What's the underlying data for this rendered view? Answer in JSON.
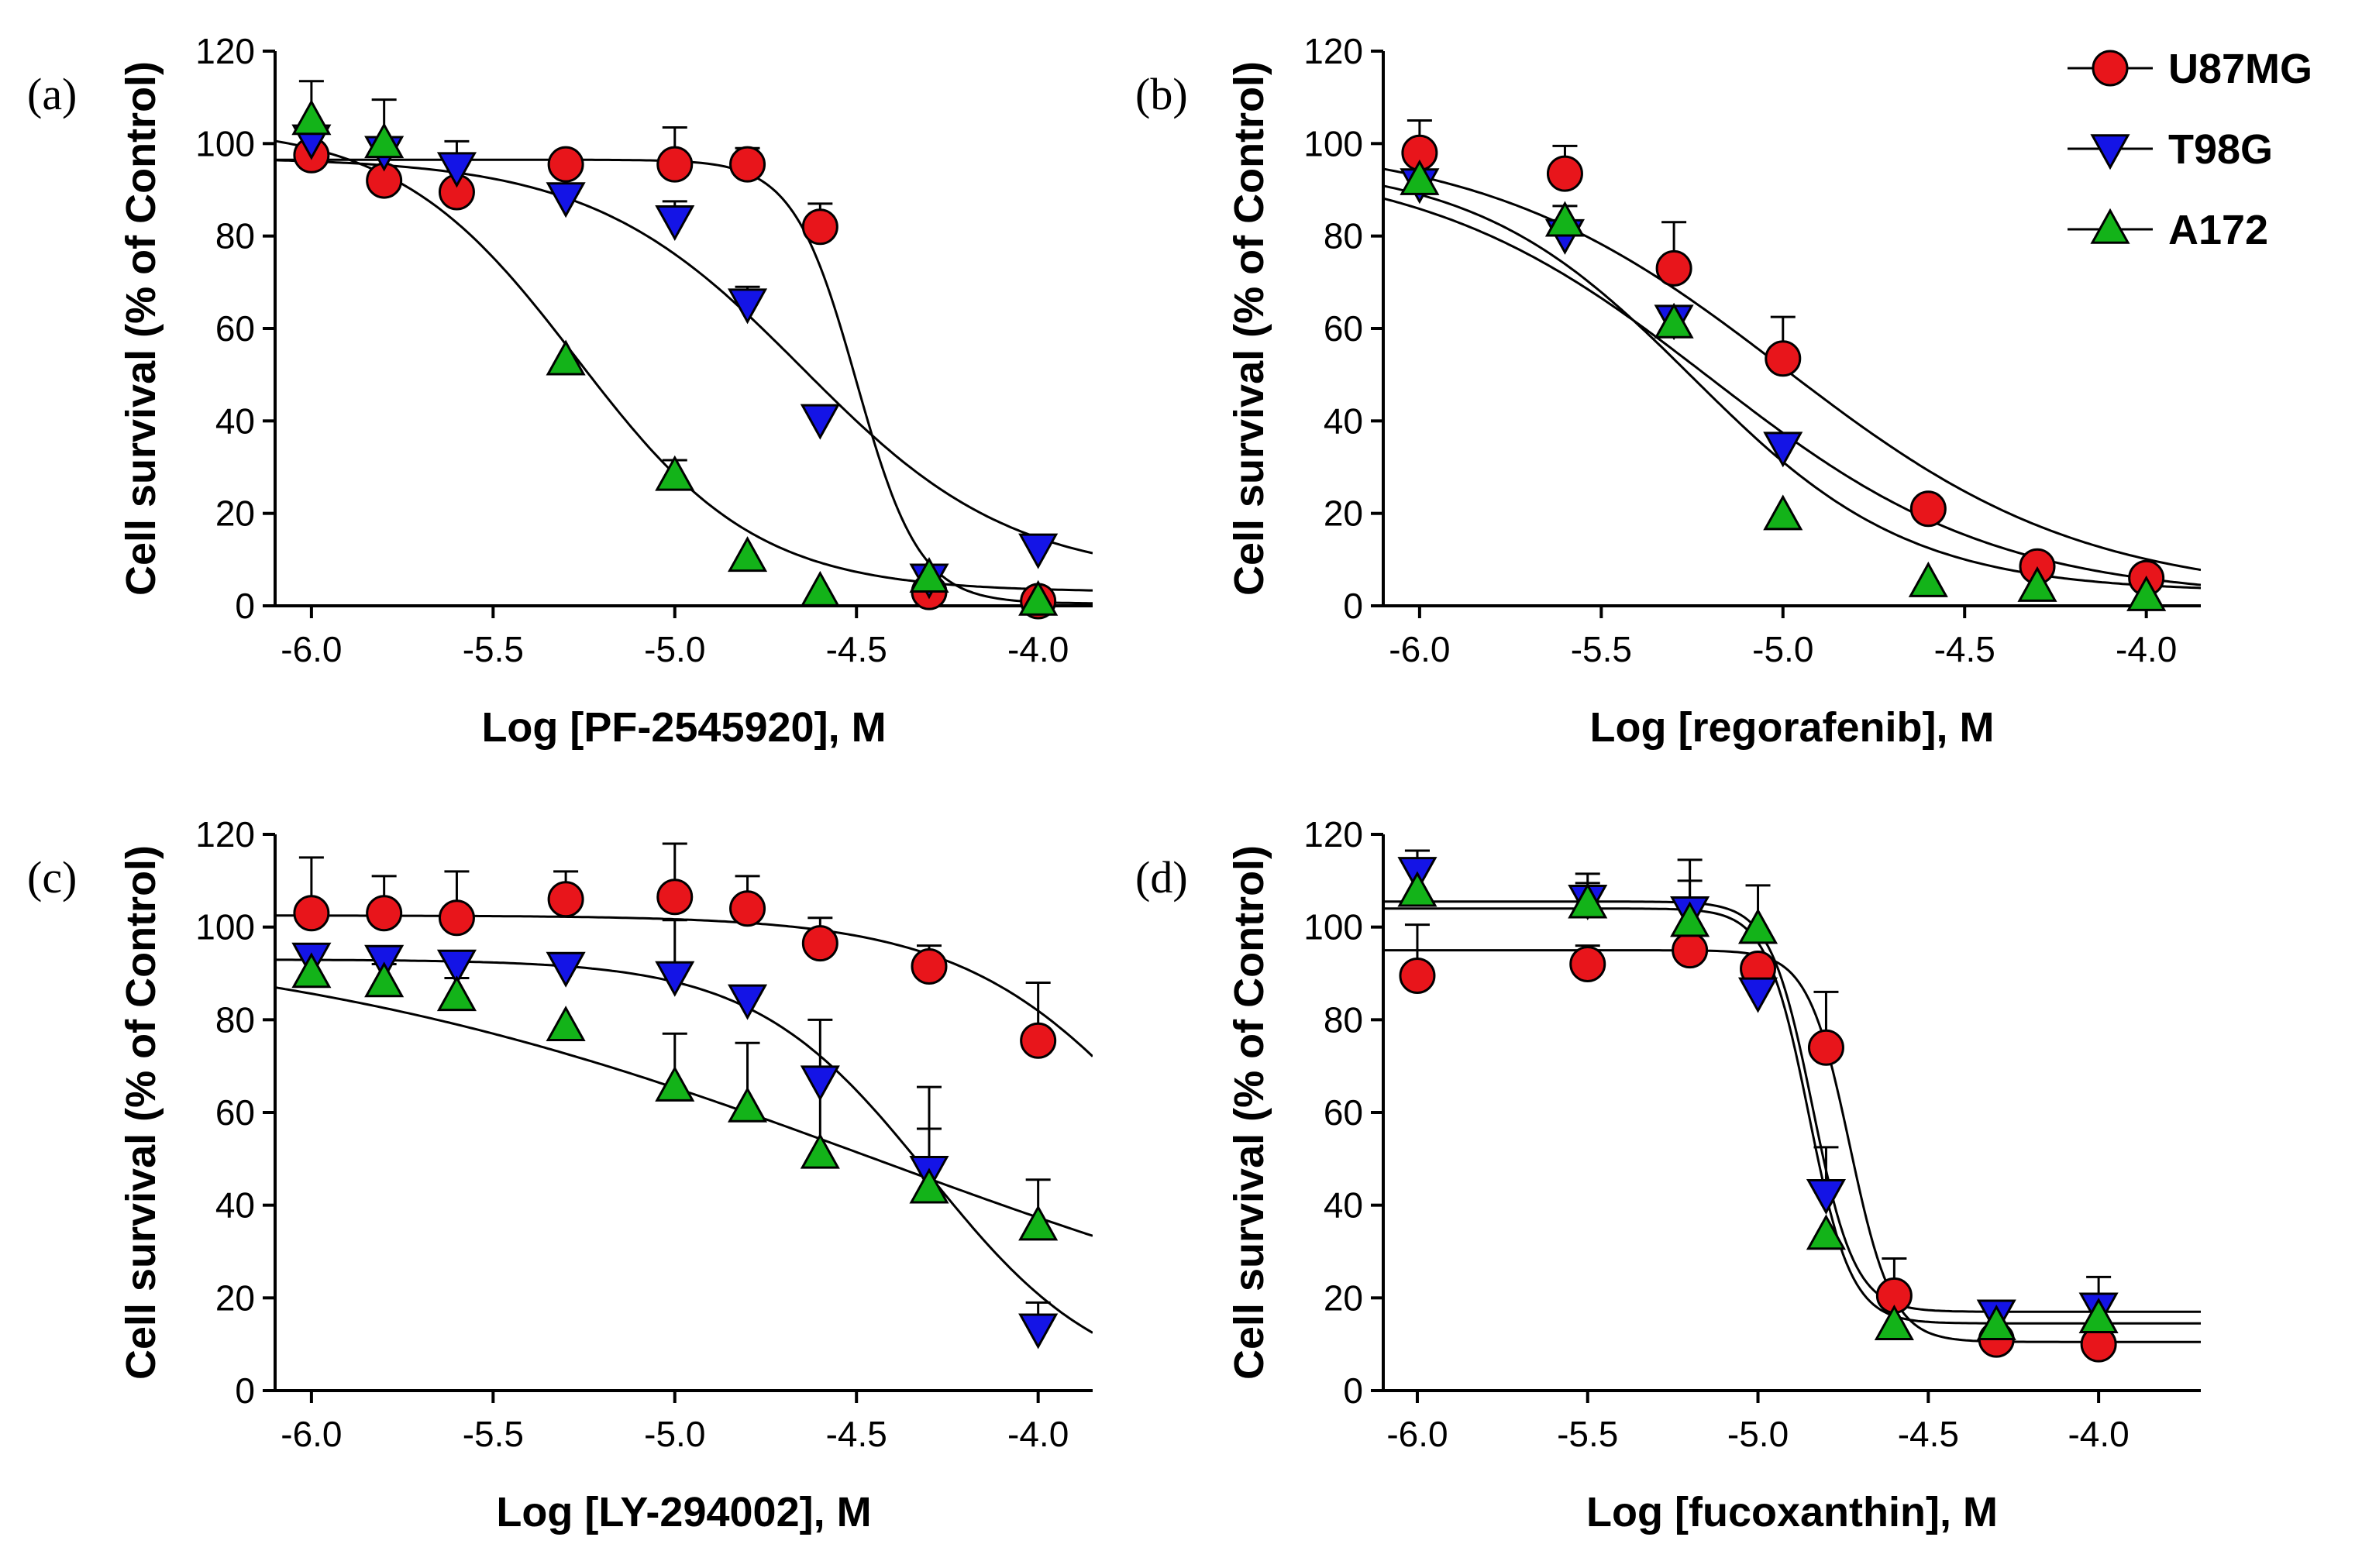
{
  "colors": {
    "U87MG": "#e8151b",
    "T98G": "#1414e6",
    "A172": "#13b319",
    "ink": "#000000"
  },
  "legend": [
    {
      "name": "U87MG",
      "marker": "circle"
    },
    {
      "name": "T98G",
      "marker": "triangle-down"
    },
    {
      "name": "A172",
      "marker": "triangle-up"
    }
  ],
  "chart_data": [
    {
      "type": "scatter",
      "panel": "(a)",
      "xlabel": "Log [PF-2545920], M",
      "ylabel": "Cell survival (% of Control)",
      "xlim": [
        -6.1,
        -3.85
      ],
      "ylim": [
        0,
        120
      ],
      "xticks": [
        -6.0,
        -5.5,
        -5.0,
        -4.5,
        -4.0
      ],
      "xtick_labels": [
        "-6.0",
        "-5.5",
        "-5.0",
        "-4.5",
        "-4.0"
      ],
      "yticks": [
        0,
        20,
        40,
        60,
        80,
        100,
        120
      ],
      "series": [
        {
          "name": "U87MG",
          "x": [
            -6.0,
            -5.8,
            -5.6,
            -5.3,
            -5.0,
            -4.8,
            -4.6,
            -4.3,
            -4.0
          ],
          "y": [
            97.5,
            92,
            89.5,
            95.5,
            95.5,
            95.5,
            82,
            3,
            1
          ],
          "err": [
            0,
            0,
            0,
            0,
            8,
            3.5,
            5,
            0,
            0
          ],
          "fit": {
            "top": 96.5,
            "bottom": 0.5,
            "logec50": -4.5,
            "hill": 5
          }
        },
        {
          "name": "T98G",
          "x": [
            -6.0,
            -5.8,
            -5.6,
            -5.3,
            -5.0,
            -4.8,
            -4.6,
            -4.3,
            -4.0
          ],
          "y": [
            101,
            98.5,
            95,
            88.5,
            83.5,
            65.5,
            40.5,
            6,
            12.5
          ],
          "err": [
            0,
            0,
            5.5,
            0,
            4,
            3.5,
            0,
            0,
            0
          ],
          "fit": {
            "top": 97,
            "bottom": 6,
            "logec50": -4.65,
            "hill": 1.5
          }
        },
        {
          "name": "A172",
          "x": [
            -6.0,
            -5.8,
            -5.3,
            -5.0,
            -4.8,
            -4.6,
            -4.3,
            -4.0
          ],
          "y": [
            105,
            100,
            53,
            28,
            10.5,
            3,
            6,
            1
          ],
          "err": [
            8.5,
            9.5,
            0,
            3.5,
            0,
            0,
            0,
            0
          ],
          "fit": {
            "top": 104,
            "bottom": 3,
            "logec50": -5.27,
            "hill": 1.75
          }
        }
      ]
    },
    {
      "type": "scatter",
      "panel": "(b)",
      "xlabel": "Log [regorafenib], M",
      "ylabel": "Cell survival (% of Control)",
      "xlim": [
        -6.1,
        -3.85
      ],
      "ylim": [
        0,
        120
      ],
      "xticks": [
        -6.0,
        -5.5,
        -5.0,
        -4.5,
        -4.0
      ],
      "xtick_labels": [
        "-6.0",
        "-5.5",
        "-5.0",
        "-4.5",
        "-4.0"
      ],
      "yticks": [
        0,
        20,
        40,
        60,
        80,
        100,
        120
      ],
      "series": [
        {
          "name": "U87MG",
          "x": [
            -6.0,
            -5.6,
            -5.3,
            -5.0,
            -4.6,
            -4.3,
            -4.0
          ],
          "y": [
            98,
            93.5,
            73,
            53.5,
            21,
            8.5,
            6
          ],
          "err": [
            7,
            6,
            10,
            9,
            0,
            0,
            0
          ],
          "fit": {
            "top": 101,
            "bottom": 2,
            "logec50": -5.0,
            "hill": 1.05
          }
        },
        {
          "name": "T98G",
          "x": [
            -6.0,
            -5.6,
            -5.3,
            -5.0
          ],
          "y": [
            91.5,
            80.5,
            62,
            34.5
          ],
          "err": [
            0,
            0,
            0,
            0
          ],
          "fit": {
            "top": 97,
            "bottom": 1.5,
            "logec50": -5.2,
            "hill": 1.1
          }
        },
        {
          "name": "A172",
          "x": [
            -6.0,
            -5.6,
            -5.3,
            -5.0,
            -4.6,
            -4.3,
            -4.0
          ],
          "y": [
            92,
            83,
            61,
            19.5,
            5,
            4,
            2
          ],
          "err": [
            0,
            3.5,
            0,
            0,
            0,
            0,
            0
          ],
          "fit": {
            "top": 96,
            "bottom": 3,
            "logec50": -5.25,
            "hill": 1.45
          }
        }
      ]
    },
    {
      "type": "scatter",
      "panel": "(c)",
      "xlabel": "Log [LY-294002], M",
      "ylabel": "Cell survival (% of Control)",
      "xlim": [
        -6.1,
        -3.85
      ],
      "ylim": [
        0,
        120
      ],
      "xticks": [
        -6.0,
        -5.5,
        -5.0,
        -4.5,
        -4.0
      ],
      "xtick_labels": [
        "-6.0",
        "-5.5",
        "-5.0",
        "-4.5",
        "-4.0"
      ],
      "yticks": [
        0,
        20,
        40,
        60,
        80,
        100,
        120
      ],
      "series": [
        {
          "name": "U87MG",
          "x": [
            -6.0,
            -5.8,
            -5.6,
            -5.3,
            -5.0,
            -4.8,
            -4.6,
            -4.3,
            -4.0
          ],
          "y": [
            103,
            103,
            102,
            106,
            106.5,
            104,
            96.5,
            91.5,
            75.5
          ],
          "err": [
            12,
            8,
            10,
            6,
            11.5,
            7,
            5.5,
            4.5,
            12.5
          ],
          "fit": {
            "top": 102.5,
            "bottom": 0,
            "logec50": -3.6,
            "hill": 1.5
          }
        },
        {
          "name": "T98G",
          "x": [
            -6.0,
            -5.8,
            -5.6,
            -5.3,
            -5.0,
            -4.8,
            -4.6,
            -4.3,
            -4.0
          ],
          "y": [
            93.5,
            93,
            92,
            91.5,
            89.5,
            84.5,
            67,
            47.5,
            13.5
          ],
          "err": [
            0,
            0,
            0,
            0,
            12,
            0,
            0,
            9,
            5.5
          ],
          "fit": {
            "top": 93,
            "bottom": 0,
            "logec50": -4.3,
            "hill": 1.8
          }
        },
        {
          "name": "A172",
          "x": [
            -6.0,
            -5.8,
            -5.6,
            -5.3,
            -5.0,
            -4.8,
            -4.6,
            -4.3,
            -4.0
          ],
          "y": [
            90,
            88,
            85,
            78.5,
            65.5,
            61,
            51,
            43.5,
            35.5
          ],
          "err": [
            0,
            4,
            4,
            0,
            11.5,
            14,
            29,
            22,
            10
          ],
          "fit": {
            "top": 100,
            "bottom": 0,
            "logec50": -4.45,
            "hill": 0.5
          }
        }
      ]
    },
    {
      "type": "scatter",
      "panel": "(d)",
      "xlabel": "Log [fucoxanthin], M",
      "ylabel": "Cell survival (% of Control)",
      "xlim": [
        -6.1,
        -3.7
      ],
      "ylim": [
        0,
        120
      ],
      "xticks": [
        -6.0,
        -5.5,
        -5.0,
        -4.5,
        -4.0
      ],
      "xtick_labels": [
        "-6.0",
        "-5.5",
        "-5.0",
        "-4.5",
        "-4.0"
      ],
      "yticks": [
        0,
        20,
        40,
        60,
        80,
        100,
        120
      ],
      "series": [
        {
          "name": "U87MG",
          "x": [
            -6.0,
            -5.5,
            -5.2,
            -5.0,
            -4.8,
            -4.6,
            -4.3,
            -4.0
          ],
          "y": [
            89.5,
            92,
            95,
            91,
            74,
            20.5,
            11,
            10
          ],
          "err": [
            11,
            4,
            0,
            0,
            12,
            8,
            0,
            0
          ],
          "fit": {
            "top": 95,
            "bottom": 10.5,
            "logec50": -4.73,
            "hill": 7
          }
        },
        {
          "name": "T98G",
          "x": [
            -6.0,
            -5.5,
            -5.2,
            -5.0,
            -4.8,
            -4.3,
            -4.0
          ],
          "y": [
            112,
            106,
            103.5,
            86,
            42.5,
            16.5,
            18
          ],
          "err": [
            4.5,
            3.5,
            11,
            5,
            10,
            0,
            6.5
          ],
          "fit": {
            "top": 105.5,
            "bottom": 17,
            "logec50": -4.84,
            "hill": 7
          }
        },
        {
          "name": "A172",
          "x": [
            -6.0,
            -5.5,
            -5.2,
            -5.0,
            -4.8,
            -4.6,
            -4.3,
            -4.0
          ],
          "y": [
            107.5,
            105,
            101,
            99.5,
            33.5,
            14,
            14,
            15.5
          ],
          "err": [
            9,
            6.5,
            9,
            9.5,
            0,
            0,
            0,
            0
          ],
          "fit": {
            "top": 104,
            "bottom": 14.5,
            "logec50": -4.85,
            "hill": 7
          }
        }
      ]
    }
  ]
}
